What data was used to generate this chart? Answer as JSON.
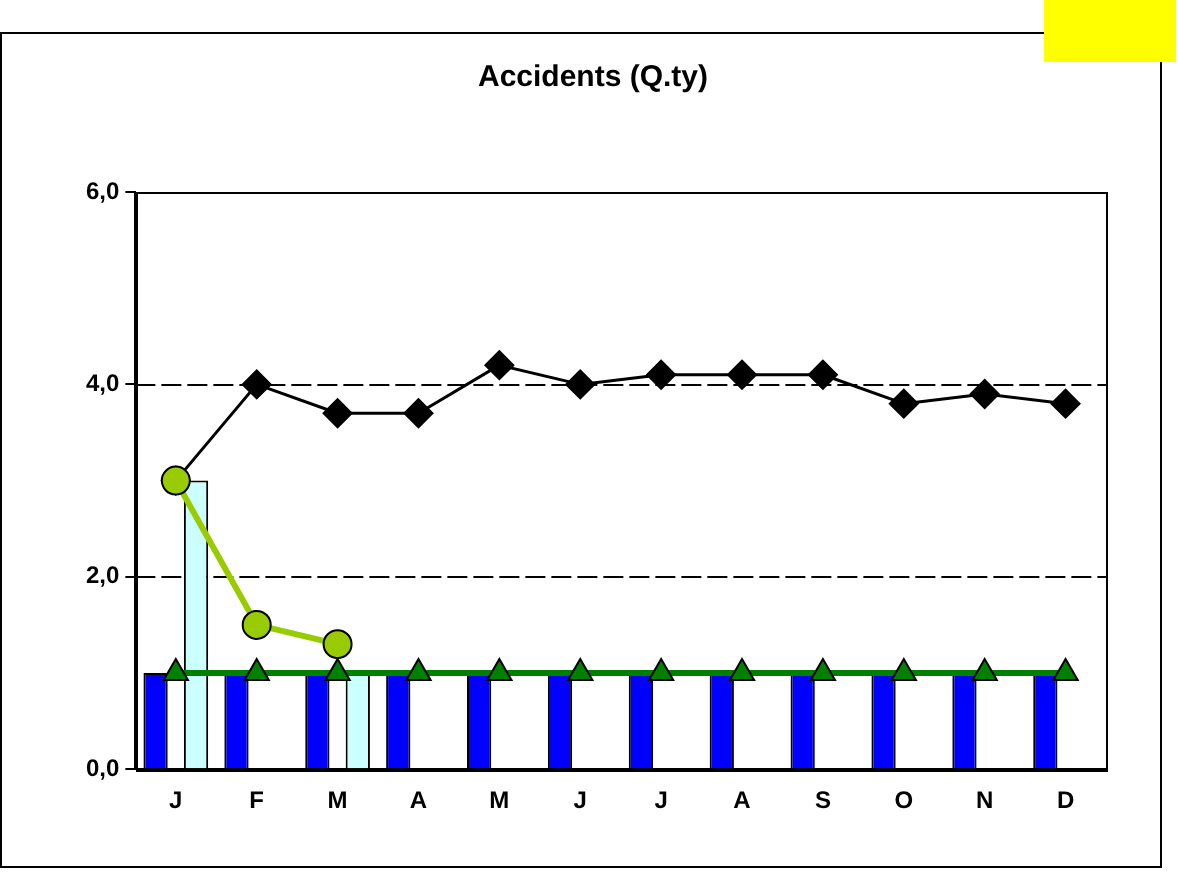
{
  "chart_data": {
    "type": "bar",
    "title": "Accidents (Q.ty)",
    "categories": [
      "J",
      "F",
      "M",
      "A",
      "M",
      "J",
      "J",
      "A",
      "S",
      "O",
      "N",
      "D"
    ],
    "series": [
      {
        "color": "#0000ff",
        "values": [
          1,
          1,
          1,
          1,
          1,
          1,
          1,
          1,
          1,
          1,
          1,
          1
        ]
      },
      {
        "color": "#ccffff",
        "values": [
          3,
          null,
          1,
          null,
          null,
          null,
          null,
          null,
          null,
          null,
          null,
          null
        ]
      },
      {
        "type": "line",
        "color": "#008000",
        "marker": "triangle",
        "values": [
          1,
          1,
          1,
          1,
          1,
          1,
          1,
          1,
          1,
          1,
          1,
          1
        ]
      },
      {
        "type": "line",
        "color": "#99cc00",
        "marker": "circle",
        "values": [
          3.0,
          1.5,
          1.3,
          null,
          null,
          null,
          null,
          null,
          null,
          null,
          null,
          null
        ]
      },
      {
        "type": "line",
        "color": "#000000",
        "marker": "diamond",
        "values": [
          3.0,
          4.0,
          3.7,
          3.7,
          4.2,
          4.0,
          4.1,
          4.1,
          4.1,
          3.8,
          3.9,
          3.8
        ]
      }
    ],
    "ylim": [
      0,
      6
    ],
    "yticks": [
      {
        "value": 0,
        "label": "0,0"
      },
      {
        "value": 2,
        "label": "2,0"
      },
      {
        "value": 4,
        "label": "4,0"
      },
      {
        "value": 6,
        "label": "6,0"
      }
    ],
    "ref_lines": [
      {
        "axis": "y",
        "value": 2,
        "color": "#000000",
        "line_style": "dashed"
      },
      {
        "axis": "y",
        "value": 4,
        "color": "#000000",
        "line_style": "dashed"
      }
    ],
    "legend": false
  }
}
